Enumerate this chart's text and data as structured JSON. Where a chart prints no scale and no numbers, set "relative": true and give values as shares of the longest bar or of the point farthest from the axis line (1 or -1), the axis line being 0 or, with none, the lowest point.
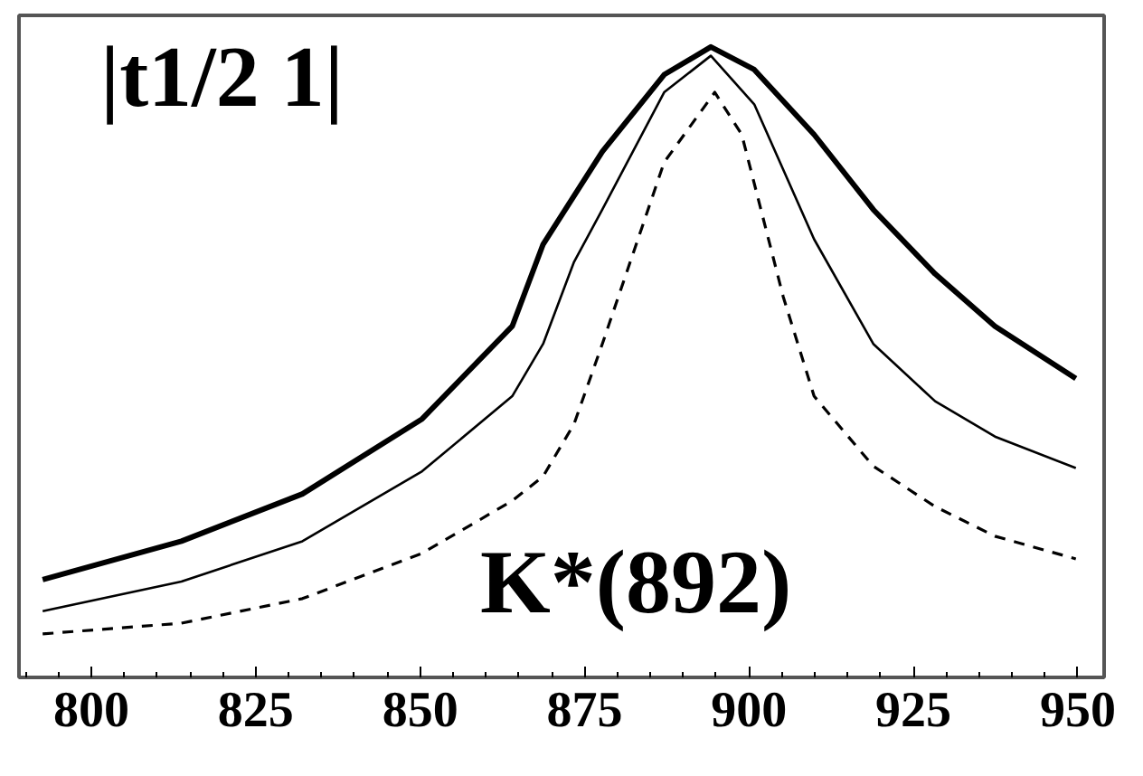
{
  "chart_data": {
    "type": "line",
    "relative": true,
    "xlim": [
      789,
      954
    ],
    "xticks": [
      800,
      825,
      850,
      875,
      900,
      925,
      950
    ],
    "grid": false,
    "tick_labels": "x",
    "annotations": [
      "|t1/2 1|",
      "K*(892)"
    ],
    "series": [
      {
        "color": "#000000",
        "line_style": "solid",
        "x": [
          792.6,
          813.7,
          832.1,
          850.3,
          864.0,
          868.7,
          877.7,
          887.1,
          894.2,
          900.8,
          909.9,
          918.9,
          928.3,
          937.4,
          949.7
        ],
        "values": [
          0.155,
          0.216,
          0.291,
          0.41,
          0.557,
          0.687,
          0.834,
          0.956,
          1.0,
          0.964,
          0.861,
          0.742,
          0.64,
          0.557,
          0.474
        ]
      },
      {
        "color": "#000000",
        "line_style": "solid",
        "x": [
          792.6,
          813.7,
          832.1,
          850.3,
          864.0,
          868.7,
          873.4,
          877.7,
          887.1,
          894.2,
          900.8,
          909.9,
          918.9,
          928.3,
          937.4,
          949.7
        ],
        "values": [
          0.105,
          0.152,
          0.216,
          0.327,
          0.446,
          0.529,
          0.659,
          0.742,
          0.928,
          0.986,
          0.909,
          0.695,
          0.529,
          0.438,
          0.382,
          0.332
        ]
      },
      {
        "color": "#000000",
        "line_style": "dashed",
        "x": [
          792.6,
          813.7,
          832.1,
          850.3,
          864.0,
          868.7,
          873.4,
          877.7,
          887.1,
          894.8,
          898.9,
          905.2,
          909.9,
          918.9,
          928.3,
          937.4,
          949.7
        ],
        "values": [
          0.069,
          0.086,
          0.125,
          0.197,
          0.28,
          0.319,
          0.402,
          0.529,
          0.817,
          0.928,
          0.861,
          0.604,
          0.446,
          0.335,
          0.271,
          0.224,
          0.188
        ]
      }
    ]
  }
}
